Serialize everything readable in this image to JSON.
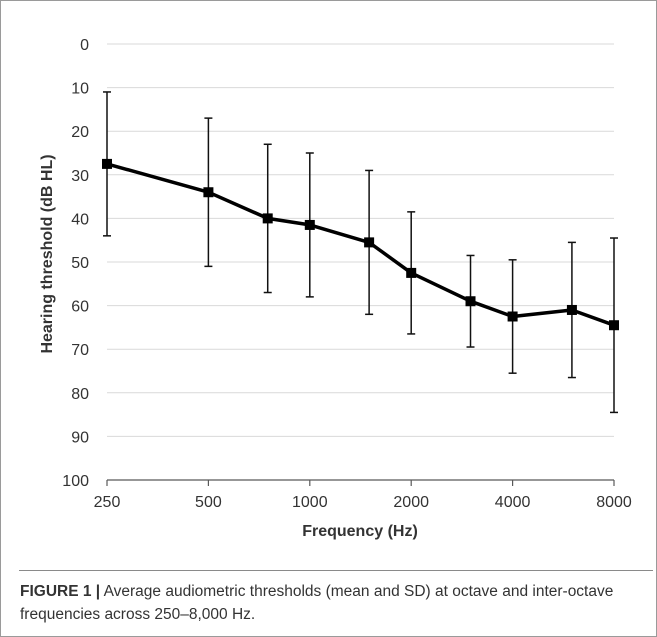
{
  "chart_data": {
    "type": "line",
    "xlabel": "Frequency (Hz)",
    "ylabel": "Hearing threshold (dB HL)",
    "x_scale": "log",
    "x_ticks": [
      "250",
      "500",
      "1000",
      "2000",
      "4000",
      "8000"
    ],
    "y_ticks": [
      "0",
      "10",
      "20",
      "30",
      "40",
      "50",
      "60",
      "70",
      "80",
      "90",
      "100"
    ],
    "ylim": [
      0,
      100
    ],
    "y_inverted": true,
    "grid": "horizontal",
    "error_bars": "SD",
    "x": [
      250,
      500,
      750,
      1000,
      1500,
      2000,
      3000,
      4000,
      6000,
      8000
    ],
    "series": [
      {
        "mean": [
          27.5,
          34,
          40,
          41.5,
          45.5,
          52.5,
          59,
          62.5,
          61,
          64.5
        ],
        "sd": [
          16.5,
          17,
          17,
          16.5,
          16.5,
          14,
          10.5,
          13,
          15.5,
          20
        ]
      }
    ]
  },
  "caption": {
    "label": "FIGURE 1 |",
    "text": " Average audiometric thresholds (mean and SD) at octave and inter-octave frequencies across 250–8,000 Hz."
  }
}
